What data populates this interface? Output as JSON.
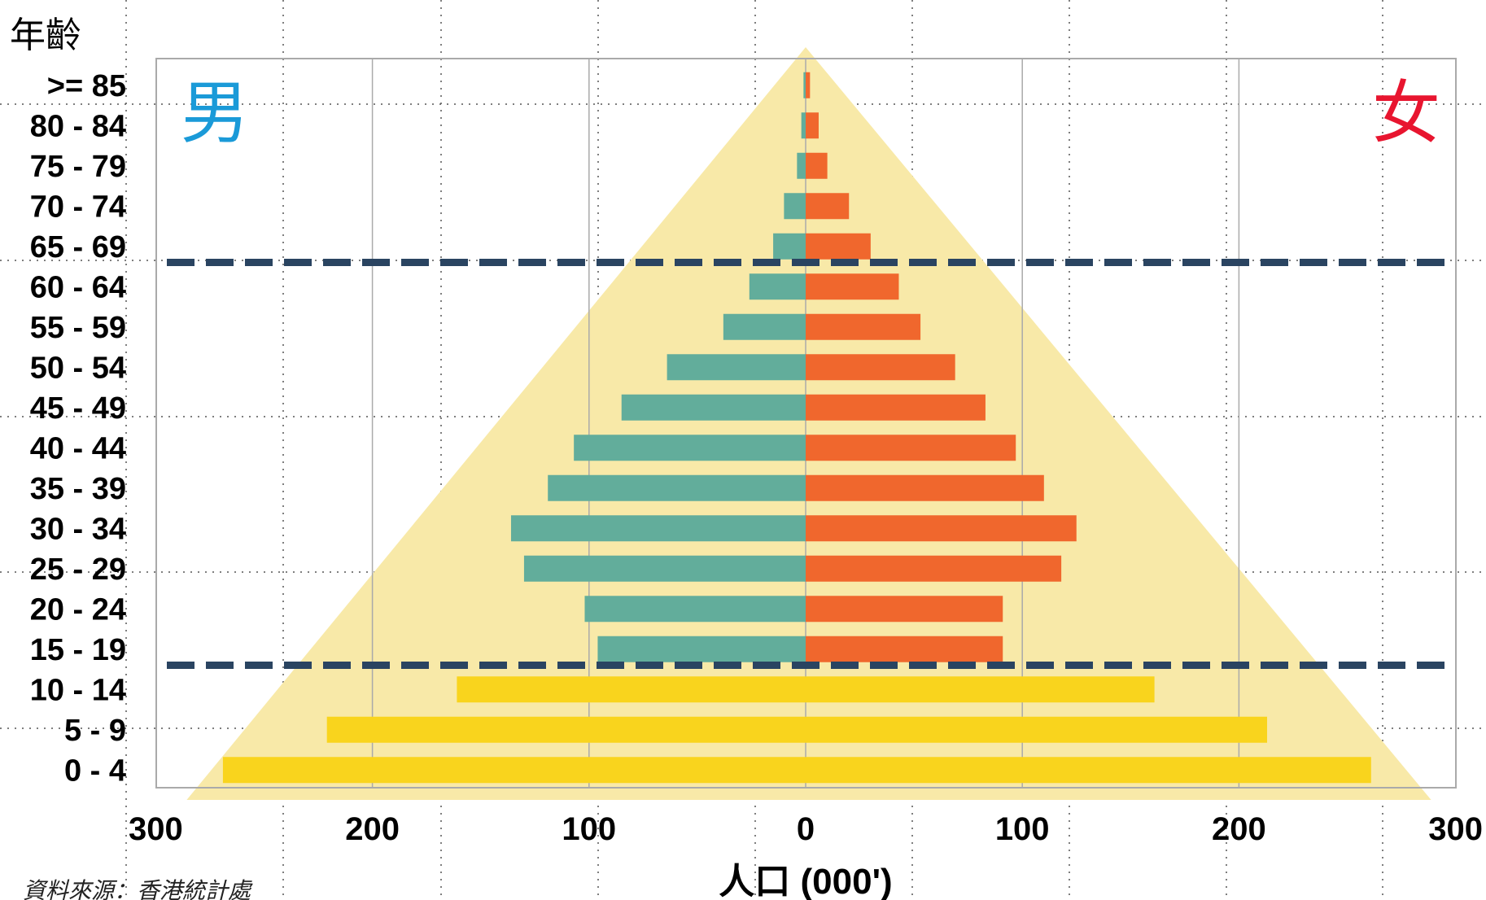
{
  "chart_data": {
    "type": "bar",
    "subtype": "population-pyramid",
    "ylabel": "年齡",
    "xlabel": "人口 (000')",
    "male_label": "男",
    "female_label": "女",
    "source": "資料來源：香港統計處",
    "categories": [
      ">= 85",
      "80 - 84",
      "75 - 79",
      "70 - 74",
      "65 - 69",
      "60 - 64",
      "55 - 59",
      "50 - 54",
      "45 - 49",
      "40 - 44",
      "35 - 39",
      "30 - 34",
      "25 - 29",
      "20 - 24",
      "15 - 19",
      "10 - 14",
      "5 - 9",
      "0 - 4"
    ],
    "series": [
      {
        "name": "男",
        "values": [
          1,
          2,
          4,
          10,
          15,
          26,
          38,
          64,
          85,
          107,
          119,
          136,
          130,
          102,
          96,
          161,
          221,
          269
        ]
      },
      {
        "name": "女",
        "values": [
          2,
          6,
          10,
          20,
          30,
          43,
          53,
          69,
          83,
          97,
          110,
          125,
          118,
          91,
          91,
          161,
          213,
          261
        ]
      }
    ],
    "xlim": [
      -300,
      300
    ],
    "xticks": [
      -300,
      -200,
      -100,
      0,
      100,
      200,
      300
    ],
    "xtick_labels": [
      "300",
      "200",
      "100",
      "0",
      "100",
      "200",
      "300"
    ],
    "grid": true,
    "dashed_separators_between": [
      [
        "65 - 69",
        "60 - 64"
      ],
      [
        "15 - 19",
        "10 - 14"
      ]
    ],
    "colors": {
      "male": "#62ad9b",
      "female": "#f0672d",
      "youth": "#f9d41d",
      "triangle": "#f8e9a8",
      "male_label": "#1a9ad8",
      "female_label": "#e8152f",
      "separator": "#2a4461",
      "grid": "#aaaaaa"
    }
  }
}
